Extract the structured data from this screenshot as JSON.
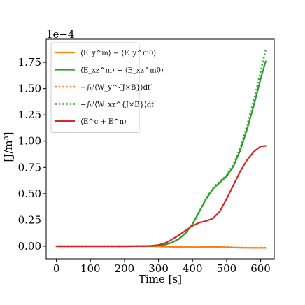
{
  "chart_data": {
    "type": "line",
    "xlabel": "Time [s]",
    "ylabel": "[J/m³]",
    "offset_label": "1e−4",
    "xlim": [
      -30,
      640
    ],
    "ylim": [
      -1.2e-05,
      0.000197
    ],
    "xticks": [
      0,
      100,
      200,
      300,
      400,
      500,
      600
    ],
    "xtick_labels": [
      "0",
      "100",
      "200",
      "300",
      "400",
      "500",
      "600"
    ],
    "yticks": [
      0,
      2.5e-05,
      5e-05,
      7.5e-05,
      0.0001,
      0.000125,
      0.00015,
      0.000175
    ],
    "ytick_labels": [
      "0.00",
      "0.25",
      "0.50",
      "0.75",
      "1.00",
      "1.25",
      "1.50",
      "1.75"
    ],
    "grid": false,
    "legend_position": "top-left",
    "series": [
      {
        "name": "⟨E_y^m⟩ − ⟨E_y^m0⟩",
        "color": "#ff7f0e",
        "style": "solid",
        "x": [
          0,
          100,
          200,
          250,
          280,
          300,
          330,
          360,
          400,
          430,
          460,
          500,
          540,
          580,
          615
        ],
        "y": [
          0,
          0,
          0,
          0,
          -1e-07,
          -3e-07,
          -5e-07,
          -7e-07,
          -9e-07,
          -8e-07,
          -6e-07,
          -1e-06,
          -1.4e-06,
          -1.6e-06,
          -1.6e-06
        ]
      },
      {
        "name": "⟨E_xz^m⟩ − ⟨E_xz^m0⟩",
        "color": "#2ca02c",
        "style": "solid",
        "x": [
          0,
          100,
          200,
          250,
          280,
          300,
          320,
          340,
          360,
          380,
          400,
          420,
          440,
          460,
          480,
          500,
          520,
          540,
          560,
          580,
          600,
          615
        ],
        "y": [
          0,
          0,
          0,
          1e-07,
          3e-07,
          7e-07,
          1.5e-06,
          3.5e-06,
          7e-06,
          1.25e-05,
          2.1e-05,
          3.3e-05,
          4.5e-05,
          5.45e-05,
          6.05e-05,
          6.65e-05,
          7.6e-05,
          9.1e-05,
          0.000111,
          0.000134,
          0.000159,
          0.000176
        ]
      },
      {
        "name": "−∫₀ᵗ⟨W_y^{J×B}⟩dt′",
        "color": "#ff7f0e",
        "style": "dotted",
        "x": [
          0,
          100,
          200,
          250,
          280,
          300,
          330,
          360,
          400,
          430,
          460,
          500,
          540,
          580,
          615
        ],
        "y": [
          0,
          0,
          0,
          0,
          -1e-07,
          -2e-07,
          -4e-07,
          -6e-07,
          -8e-07,
          -7e-07,
          -5e-07,
          -9e-07,
          -1.2e-06,
          -1.4e-06,
          -1.4e-06
        ]
      },
      {
        "name": "−∫₀ᵗ⟨W_xz^{J×B}⟩dt′",
        "color": "#2ca02c",
        "style": "dotted",
        "x": [
          0,
          100,
          200,
          250,
          280,
          300,
          320,
          340,
          360,
          380,
          400,
          420,
          440,
          460,
          480,
          500,
          520,
          540,
          560,
          580,
          600,
          615
        ],
        "y": [
          0,
          0,
          0,
          1e-07,
          3e-07,
          7e-07,
          1.5e-06,
          3.5e-06,
          7e-06,
          1.25e-05,
          2.1e-05,
          3.3e-05,
          4.55e-05,
          5.55e-05,
          6.15e-05,
          6.75e-05,
          7.8e-05,
          9.4e-05,
          0.000115,
          0.000139,
          0.000166,
          0.000187
        ]
      },
      {
        "name": "⟨E^c + E^n⟩",
        "color": "#d62728",
        "style": "solid",
        "x": [
          0,
          100,
          200,
          250,
          280,
          300,
          320,
          340,
          360,
          380,
          400,
          420,
          440,
          460,
          480,
          500,
          520,
          540,
          560,
          580,
          600,
          615
        ],
        "y": [
          0,
          0,
          0,
          1e-07,
          4e-07,
          1.2e-06,
          3e-06,
          6.5e-06,
          1.05e-05,
          1.5e-05,
          1.95e-05,
          2.25e-05,
          2.4e-05,
          2.65e-05,
          3.3e-05,
          4.5e-05,
          5.8e-05,
          7.1e-05,
          8.2e-05,
          9e-05,
          9.5e-05,
          9.55e-05
        ]
      }
    ],
    "legend": [
      {
        "label": "⟨E_y^m⟩ − ⟨E_y^m0⟩",
        "color": "#ff7f0e",
        "style": "solid"
      },
      {
        "label": "⟨E_xz^m⟩ − ⟨E_xz^m0⟩",
        "color": "#2ca02c",
        "style": "solid"
      },
      {
        "label": "−∫₀ᵗ⟨W_y^{J×B}⟩dt′",
        "color": "#ff7f0e",
        "style": "dotted"
      },
      {
        "label": "−∫₀ᵗ⟨W_xz^{J×B}⟩dt′",
        "color": "#2ca02c",
        "style": "dotted"
      },
      {
        "label": "⟨E^c + E^n⟩",
        "color": "#d62728",
        "style": "solid"
      }
    ]
  }
}
